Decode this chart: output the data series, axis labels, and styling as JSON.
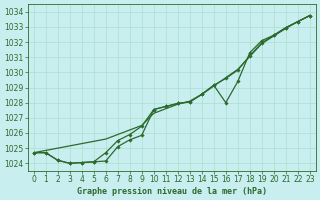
{
  "xlabel": "Graphe pression niveau de la mer (hPa)",
  "ylim": [
    1023.5,
    1034.5
  ],
  "xlim": [
    -0.5,
    23.5
  ],
  "yticks": [
    1024,
    1025,
    1026,
    1027,
    1028,
    1029,
    1030,
    1031,
    1032,
    1033,
    1034
  ],
  "xticks": [
    0,
    1,
    2,
    3,
    4,
    5,
    6,
    7,
    8,
    9,
    10,
    11,
    12,
    13,
    14,
    15,
    16,
    17,
    18,
    19,
    20,
    21,
    22,
    23
  ],
  "bg_color": "#c8eef0",
  "grid_color": "#aaddcc",
  "line_color": "#2d6a2d",
  "marker_color": "#2d6a2d",
  "series1_x": [
    0,
    1,
    2,
    3,
    4,
    5,
    6,
    7,
    8,
    9,
    10,
    11,
    12,
    13,
    14,
    15,
    16,
    17,
    18,
    19,
    20,
    21,
    22,
    23
  ],
  "series1_y": [
    1024.7,
    1024.7,
    1024.2,
    1024.0,
    1024.05,
    1024.1,
    1024.15,
    1025.1,
    1025.55,
    1025.85,
    1027.55,
    1027.75,
    1027.95,
    1028.05,
    1028.55,
    1029.15,
    1028.0,
    1029.4,
    1031.3,
    1032.1,
    1032.45,
    1032.95,
    1033.35,
    1033.75
  ],
  "series2_x": [
    0,
    1,
    2,
    3,
    4,
    5,
    6,
    7,
    8,
    9,
    10,
    11,
    12,
    13,
    14,
    15,
    16,
    17,
    18,
    19,
    20,
    21,
    22,
    23
  ],
  "series2_y": [
    1024.7,
    1024.7,
    1024.2,
    1024.0,
    1024.05,
    1024.1,
    1024.7,
    1025.5,
    1025.9,
    1026.45,
    1027.55,
    1027.75,
    1027.95,
    1028.05,
    1028.55,
    1029.15,
    1029.6,
    1030.15,
    1031.1,
    1031.95,
    1032.45,
    1032.95,
    1033.35,
    1033.75
  ],
  "series3_x": [
    0,
    1,
    2,
    3,
    4,
    5,
    6,
    7,
    8,
    9,
    10,
    11,
    12,
    13,
    14,
    15,
    16,
    17,
    18,
    19,
    20,
    21,
    22,
    23
  ],
  "series3_y": [
    1024.7,
    1024.85,
    1025.0,
    1025.15,
    1025.3,
    1025.45,
    1025.6,
    1025.9,
    1026.2,
    1026.5,
    1027.3,
    1027.6,
    1027.9,
    1028.1,
    1028.55,
    1029.1,
    1029.65,
    1030.2,
    1031.05,
    1031.9,
    1032.4,
    1032.9,
    1033.35,
    1033.75
  ],
  "tick_fontsize": 5.5,
  "label_fontsize": 6.0,
  "figsize": [
    3.2,
    2.0
  ],
  "dpi": 100
}
